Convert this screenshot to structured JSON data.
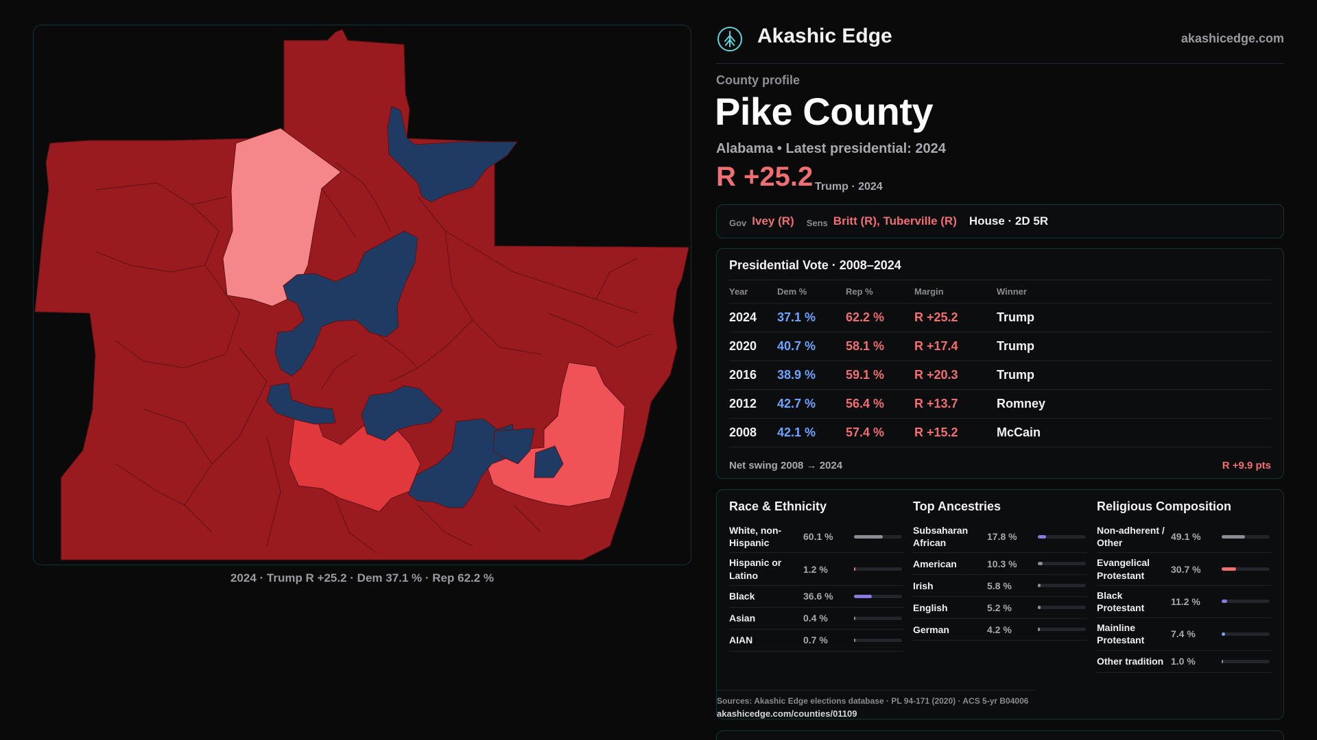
{
  "map": {
    "caption": "2024 · Trump R +25.2 · Dem 37.1 % · Rep 62.2 %",
    "colors": {
      "safe_rep": "#9a1b1f",
      "lean_rep": "#f5878a",
      "mid_rep": "#e0383d",
      "likely_rep": "#ef5257",
      "dem": "#1f3b63",
      "border": "#5e1215",
      "background": "#0a0a0b"
    }
  },
  "brand": {
    "name": "Akashic Edge",
    "url": "akashicedge.com",
    "logo_icon": "tree-emblem-icon"
  },
  "header": {
    "kicker": "County profile",
    "title": "Pike County",
    "subtitle": "Alabama • Latest presidential: 2024",
    "margin": "R +25.2",
    "margin_note": "Trump · 2024"
  },
  "officials": {
    "gov_label": "Gov",
    "gov": "Ivey (R)",
    "sens_label": "Sens",
    "sens": "Britt (R), Tuberville (R)",
    "house": "House · 2D 5R"
  },
  "presidential": {
    "title": "Presidential Vote · 2008–2024",
    "headers": [
      "Year",
      "Dem %",
      "Rep %",
      "Margin",
      "Winner"
    ],
    "rows": [
      {
        "year": "2024",
        "dem": "37.1 %",
        "rep": "62.2 %",
        "margin": "R +25.2",
        "winner": "Trump"
      },
      {
        "year": "2020",
        "dem": "40.7 %",
        "rep": "58.1 %",
        "margin": "R +17.4",
        "winner": "Trump"
      },
      {
        "year": "2016",
        "dem": "38.9 %",
        "rep": "59.1 %",
        "margin": "R +20.3",
        "winner": "Trump"
      },
      {
        "year": "2012",
        "dem": "42.7 %",
        "rep": "56.4 %",
        "margin": "R +13.7",
        "winner": "Romney"
      },
      {
        "year": "2008",
        "dem": "42.1 %",
        "rep": "57.4 %",
        "margin": "R +15.2",
        "winner": "McCain"
      }
    ],
    "swing_label": "Net swing 2008 → 2024",
    "swing_value": "R +9.9 pts"
  },
  "race": {
    "title": "Race & Ethnicity",
    "rows": [
      {
        "label": "White, non-Hispanic",
        "value": "60.1 %",
        "fill": 0.601,
        "color": "#8a8f96"
      },
      {
        "label": "Hispanic or Latino",
        "value": "1.2 %",
        "fill": 0.012,
        "color": "#f06f73"
      },
      {
        "label": "Black",
        "value": "36.6 %",
        "fill": 0.366,
        "color": "#8c79e0"
      },
      {
        "label": "Asian",
        "value": "0.4 %",
        "fill": 0.004,
        "color": "#8a8f96"
      },
      {
        "label": "AIAN",
        "value": "0.7 %",
        "fill": 0.007,
        "color": "#8a8f96"
      }
    ]
  },
  "ancestry": {
    "title": "Top Ancestries",
    "rows": [
      {
        "label": "Subsaharan African",
        "value": "17.8 %",
        "fill": 0.178,
        "color": "#8c79e0"
      },
      {
        "label": "American",
        "value": "10.3 %",
        "fill": 0.103,
        "color": "#8a8f96"
      },
      {
        "label": "Irish",
        "value": "5.8 %",
        "fill": 0.058,
        "color": "#8a8f96"
      },
      {
        "label": "English",
        "value": "5.2 %",
        "fill": 0.052,
        "color": "#8a8f96"
      },
      {
        "label": "German",
        "value": "4.2 %",
        "fill": 0.042,
        "color": "#8a8f96"
      }
    ]
  },
  "religion": {
    "title": "Religious Composition",
    "rows": [
      {
        "label": "Non-adherent / Other",
        "value": "49.1 %",
        "fill": 0.491,
        "color": "#8a8f96"
      },
      {
        "label": "Evangelical Protestant",
        "value": "30.7 %",
        "fill": 0.307,
        "color": "#f06f73"
      },
      {
        "label": "Black Protestant",
        "value": "11.2 %",
        "fill": 0.112,
        "color": "#8c79e0"
      },
      {
        "label": "Mainline Protestant",
        "value": "7.4 %",
        "fill": 0.074,
        "color": "#6ea4ff"
      },
      {
        "label": "Other tradition",
        "value": "1.0 %",
        "fill": 0.01,
        "color": "#8a8f96"
      }
    ]
  },
  "sources": {
    "line": "Sources: Akashic Edge elections database · PL 94-171 (2020) · ACS 5-yr B04006",
    "url": "akashicedge.com/counties/01109"
  }
}
